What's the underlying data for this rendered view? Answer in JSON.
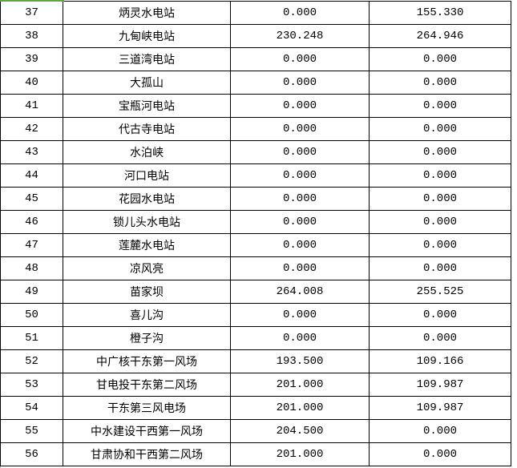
{
  "rows": [
    {
      "no": "37",
      "name": "炳灵水电站",
      "v1": "0.000",
      "v2": "155.330"
    },
    {
      "no": "38",
      "name": "九甸峡电站",
      "v1": "230.248",
      "v2": "264.946"
    },
    {
      "no": "39",
      "name": "三道湾电站",
      "v1": "0.000",
      "v2": "0.000"
    },
    {
      "no": "40",
      "name": "大孤山",
      "v1": "0.000",
      "v2": "0.000"
    },
    {
      "no": "41",
      "name": "宝瓶河电站",
      "v1": "0.000",
      "v2": "0.000"
    },
    {
      "no": "42",
      "name": "代古寺电站",
      "v1": "0.000",
      "v2": "0.000"
    },
    {
      "no": "43",
      "name": "水泊峡",
      "v1": "0.000",
      "v2": "0.000"
    },
    {
      "no": "44",
      "name": "河口电站",
      "v1": "0.000",
      "v2": "0.000"
    },
    {
      "no": "45",
      "name": "花园水电站",
      "v1": "0.000",
      "v2": "0.000"
    },
    {
      "no": "46",
      "name": "锁儿头水电站",
      "v1": "0.000",
      "v2": "0.000"
    },
    {
      "no": "47",
      "name": "莲麓水电站",
      "v1": "0.000",
      "v2": "0.000"
    },
    {
      "no": "48",
      "name": "凉风亮",
      "v1": "0.000",
      "v2": "0.000"
    },
    {
      "no": "49",
      "name": "苗家坝",
      "v1": "264.008",
      "v2": "255.525"
    },
    {
      "no": "50",
      "name": "喜儿沟",
      "v1": "0.000",
      "v2": "0.000"
    },
    {
      "no": "51",
      "name": "橙子沟",
      "v1": "0.000",
      "v2": "0.000"
    },
    {
      "no": "52",
      "name": "中广核干东第一风场",
      "v1": "193.500",
      "v2": "109.166"
    },
    {
      "no": "53",
      "name": "甘电投干东第二风场",
      "v1": "201.000",
      "v2": "109.987"
    },
    {
      "no": "54",
      "name": "干东第三风电场",
      "v1": "201.000",
      "v2": "109.987"
    },
    {
      "no": "55",
      "name": "中水建设干西第一风场",
      "v1": "204.500",
      "v2": "0.000"
    },
    {
      "no": "56",
      "name": "甘肃协和干西第二风场",
      "v1": "201.000",
      "v2": "0.000"
    }
  ],
  "colors": {
    "selection": "#5ca83a",
    "grid": "#000000"
  }
}
